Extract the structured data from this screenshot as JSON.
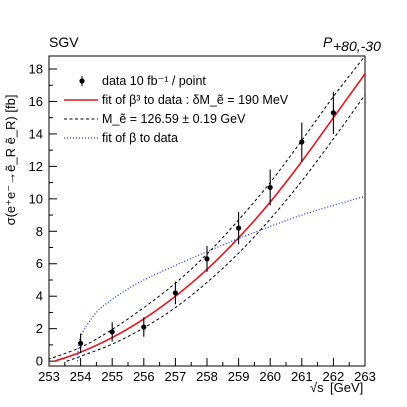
{
  "chart_data": {
    "type": "scatter",
    "labels": {
      "top_left": "SGV",
      "top_right_base": "P",
      "top_right_sub": "+80,-30"
    },
    "xlabel": {
      "prefix": "√s",
      "unit": "[GeV]"
    },
    "ylabel": {
      "text": "σ(e⁺e⁻→ẽ_R ẽ_R) [fb]"
    },
    "xlim": [
      253,
      263
    ],
    "ylim": [
      -0.3,
      18.8
    ],
    "x_ticks": [
      253,
      254,
      255,
      256,
      257,
      258,
      259,
      260,
      261,
      262,
      263
    ],
    "y_ticks": [
      0,
      2,
      4,
      6,
      8,
      10,
      12,
      14,
      16,
      18
    ],
    "grid": false,
    "legend_position": "top-left",
    "legend": [
      {
        "id": "data",
        "label": "data 10 fb⁻¹ / point"
      },
      {
        "id": "fit_beta3",
        "label": "fit of β³ to data : δM_ẽ = 190 MeV"
      },
      {
        "id": "band",
        "label": "M_ẽ = 126.59 ± 0.19 GeV"
      },
      {
        "id": "fit_beta",
        "label": "fit of β to data"
      }
    ],
    "series": [
      {
        "id": "data",
        "kind": "points_with_errors",
        "color": "#000000",
        "points": [
          {
            "x": 254,
            "y": 1.1,
            "err": 0.6
          },
          {
            "x": 255,
            "y": 1.8,
            "err": 0.6
          },
          {
            "x": 256,
            "y": 2.1,
            "err": 0.6
          },
          {
            "x": 257,
            "y": 4.2,
            "err": 0.7
          },
          {
            "x": 258,
            "y": 6.3,
            "err": 0.8
          },
          {
            "x": 259,
            "y": 8.2,
            "err": 1.0
          },
          {
            "x": 260,
            "y": 10.7,
            "err": 1.1
          },
          {
            "x": 261,
            "y": 13.5,
            "err": 1.2
          },
          {
            "x": 262,
            "y": 15.3,
            "err": 1.3
          }
        ]
      },
      {
        "id": "fit_beta3",
        "kind": "line",
        "style": "solid",
        "color": "#e8141c",
        "x": [
          253.18,
          254,
          255,
          256,
          257,
          258,
          259,
          260,
          261,
          262,
          263
        ],
        "y": [
          0,
          0.55,
          1.45,
          2.6,
          4.0,
          5.65,
          7.6,
          9.8,
          12.3,
          15.0,
          17.7
        ]
      },
      {
        "id": "band_upper",
        "kind": "line",
        "style": "dashed",
        "color": "#000000",
        "x": [
          252.8,
          254,
          255,
          256,
          257,
          258,
          259,
          260,
          261,
          262,
          263
        ],
        "y": [
          0,
          0.85,
          1.95,
          3.3,
          4.8,
          6.6,
          8.7,
          11.0,
          13.6,
          16.3,
          18.8
        ]
      },
      {
        "id": "band_lower",
        "kind": "line",
        "style": "dashed",
        "color": "#000000",
        "x": [
          253.56,
          254,
          255,
          256,
          257,
          258,
          259,
          260,
          261,
          262,
          263
        ],
        "y": [
          0,
          0.3,
          1.05,
          2.05,
          3.3,
          4.85,
          6.65,
          8.75,
          11.1,
          13.7,
          16.4
        ]
      },
      {
        "id": "fit_beta",
        "kind": "line",
        "style": "dotted",
        "color": "#2233dd",
        "x": [
          253.9,
          254,
          254.5,
          255,
          255.5,
          256,
          257,
          258,
          259,
          260,
          261,
          262,
          263
        ],
        "y": [
          0,
          1.5,
          3.0,
          3.8,
          4.45,
          5.0,
          5.9,
          6.75,
          7.55,
          8.3,
          9.0,
          9.6,
          10.15
        ]
      }
    ]
  }
}
